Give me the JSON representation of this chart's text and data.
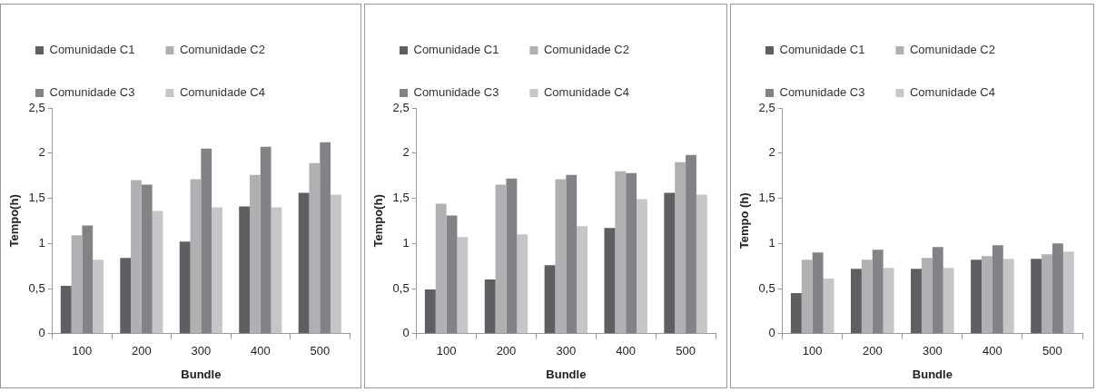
{
  "chart_data": [
    {
      "type": "bar",
      "xlabel": "Bundle",
      "ylabel": "Tempo(h)",
      "categories": [
        "100",
        "200",
        "300",
        "400",
        "500"
      ],
      "ylim": [
        0,
        2.5
      ],
      "yticks": [
        0,
        {
          "value": 0.5,
          "label": "0,5"
        },
        1,
        {
          "value": 1.5,
          "label": "1,5"
        },
        2,
        {
          "value": 2.5,
          "label": "2,5"
        }
      ],
      "legend": "top",
      "series": [
        {
          "name": "Comunidade C1",
          "color": "#5f5f63",
          "values": [
            0.53,
            0.84,
            1.02,
            1.41,
            1.56
          ]
        },
        {
          "name": "Comunidade C2",
          "color": "#b0b0b3",
          "values": [
            1.09,
            1.7,
            1.71,
            1.76,
            1.89
          ]
        },
        {
          "name": "Comunidade C3",
          "color": "#838387",
          "values": [
            1.2,
            1.65,
            2.05,
            2.07,
            2.12
          ]
        },
        {
          "name": "Comunidade C4",
          "color": "#c6c6c8",
          "values": [
            0.82,
            1.36,
            1.4,
            1.4,
            1.54
          ]
        }
      ]
    },
    {
      "type": "bar",
      "xlabel": "Bundle",
      "ylabel": "Tempo(h)",
      "categories": [
        "100",
        "200",
        "300",
        "400",
        "500"
      ],
      "ylim": [
        0,
        2.5
      ],
      "yticks": [
        0,
        {
          "value": 0.5,
          "label": "0,5"
        },
        1,
        {
          "value": 1.5,
          "label": "1,5"
        },
        2,
        {
          "value": 2.5,
          "label": "2,5"
        }
      ],
      "legend": "top",
      "series": [
        {
          "name": "Comunidade C1",
          "color": "#5f5f63",
          "values": [
            0.49,
            0.6,
            0.76,
            1.17,
            1.56
          ]
        },
        {
          "name": "Comunidade C2",
          "color": "#b0b0b3",
          "values": [
            1.44,
            1.65,
            1.71,
            1.8,
            1.9
          ]
        },
        {
          "name": "Comunidade C3",
          "color": "#838387",
          "values": [
            1.31,
            1.72,
            1.76,
            1.78,
            1.98
          ]
        },
        {
          "name": "Comunidade C4",
          "color": "#c6c6c8",
          "values": [
            1.07,
            1.1,
            1.19,
            1.49,
            1.54
          ]
        }
      ]
    },
    {
      "type": "bar",
      "xlabel": "Bundle",
      "ylabel": "Tempo (h)",
      "categories": [
        "100",
        "200",
        "300",
        "400",
        "500"
      ],
      "ylim": [
        0,
        2.5
      ],
      "yticks": [
        0,
        {
          "value": 0.5,
          "label": "0,5"
        },
        1,
        {
          "value": 1.5,
          "label": "1,5"
        },
        2,
        {
          "value": 2.5,
          "label": "2,5"
        }
      ],
      "legend": "top",
      "series": [
        {
          "name": "Comunidade C1",
          "color": "#5f5f63",
          "values": [
            0.45,
            0.72,
            0.72,
            0.82,
            0.83
          ]
        },
        {
          "name": "Comunidade C2",
          "color": "#b0b0b3",
          "values": [
            0.82,
            0.82,
            0.84,
            0.86,
            0.88
          ]
        },
        {
          "name": "Comunidade C3",
          "color": "#838387",
          "values": [
            0.9,
            0.93,
            0.96,
            0.98,
            1.0
          ]
        },
        {
          "name": "Comunidade C4",
          "color": "#c6c6c8",
          "values": [
            0.61,
            0.73,
            0.73,
            0.83,
            0.91
          ]
        }
      ]
    }
  ]
}
